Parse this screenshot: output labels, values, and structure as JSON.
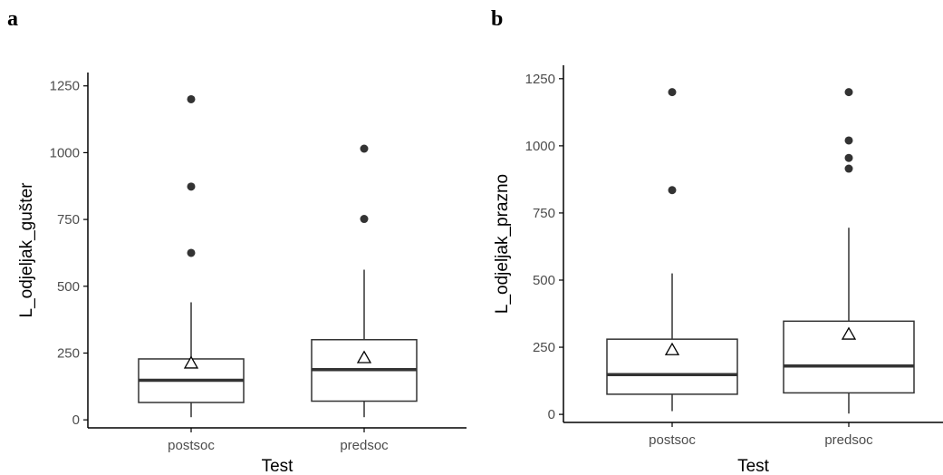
{
  "colors": {
    "box_stroke": "#333333",
    "point_fill": "#333333",
    "axis": "#000000",
    "tick_text": "#4d4d4d"
  },
  "panels": {
    "a": {
      "label": "a"
    },
    "b": {
      "label": "b"
    }
  },
  "chart_data": [
    {
      "type": "box",
      "panel": "a",
      "xlabel": "Test",
      "ylabel": "L_odjeljak_gušter",
      "ylim": [
        -30,
        1300
      ],
      "yticks": [
        0,
        250,
        500,
        750,
        1000,
        1250
      ],
      "yticklabels": [
        "0",
        "250",
        "500",
        "750",
        "1000",
        "1250"
      ],
      "categories": [
        "postsoc",
        "predsoc"
      ],
      "boxes": [
        {
          "category": "postsoc",
          "whisker_low": 10,
          "q1": 65,
          "median": 148,
          "q3": 228,
          "whisker_high": 440,
          "mean": 212,
          "outliers": [
            625,
            873,
            1200
          ]
        },
        {
          "category": "predsoc",
          "whisker_low": 10,
          "q1": 70,
          "median": 188,
          "q3": 300,
          "whisker_high": 562,
          "mean": 232,
          "outliers": [
            752,
            1015
          ]
        }
      ],
      "mean_marker": "triangle"
    },
    {
      "type": "box",
      "panel": "b",
      "xlabel": "Test",
      "ylabel": "L_odjeljak_prazno",
      "ylim": [
        -30,
        1300
      ],
      "yticks": [
        0,
        250,
        500,
        750,
        1000,
        1250
      ],
      "yticklabels": [
        "0",
        "250",
        "500",
        "750",
        "1000",
        "1250"
      ],
      "categories": [
        "postsoc",
        "predsoc"
      ],
      "boxes": [
        {
          "category": "postsoc",
          "whisker_low": 12,
          "q1": 75,
          "median": 148,
          "q3": 280,
          "whisker_high": 525,
          "mean": 240,
          "outliers": [
            835,
            1200
          ]
        },
        {
          "category": "predsoc",
          "whisker_low": 3,
          "q1": 80,
          "median": 180,
          "q3": 347,
          "whisker_high": 695,
          "mean": 298,
          "outliers": [
            915,
            955,
            1020,
            1200
          ]
        }
      ],
      "mean_marker": "triangle"
    }
  ]
}
